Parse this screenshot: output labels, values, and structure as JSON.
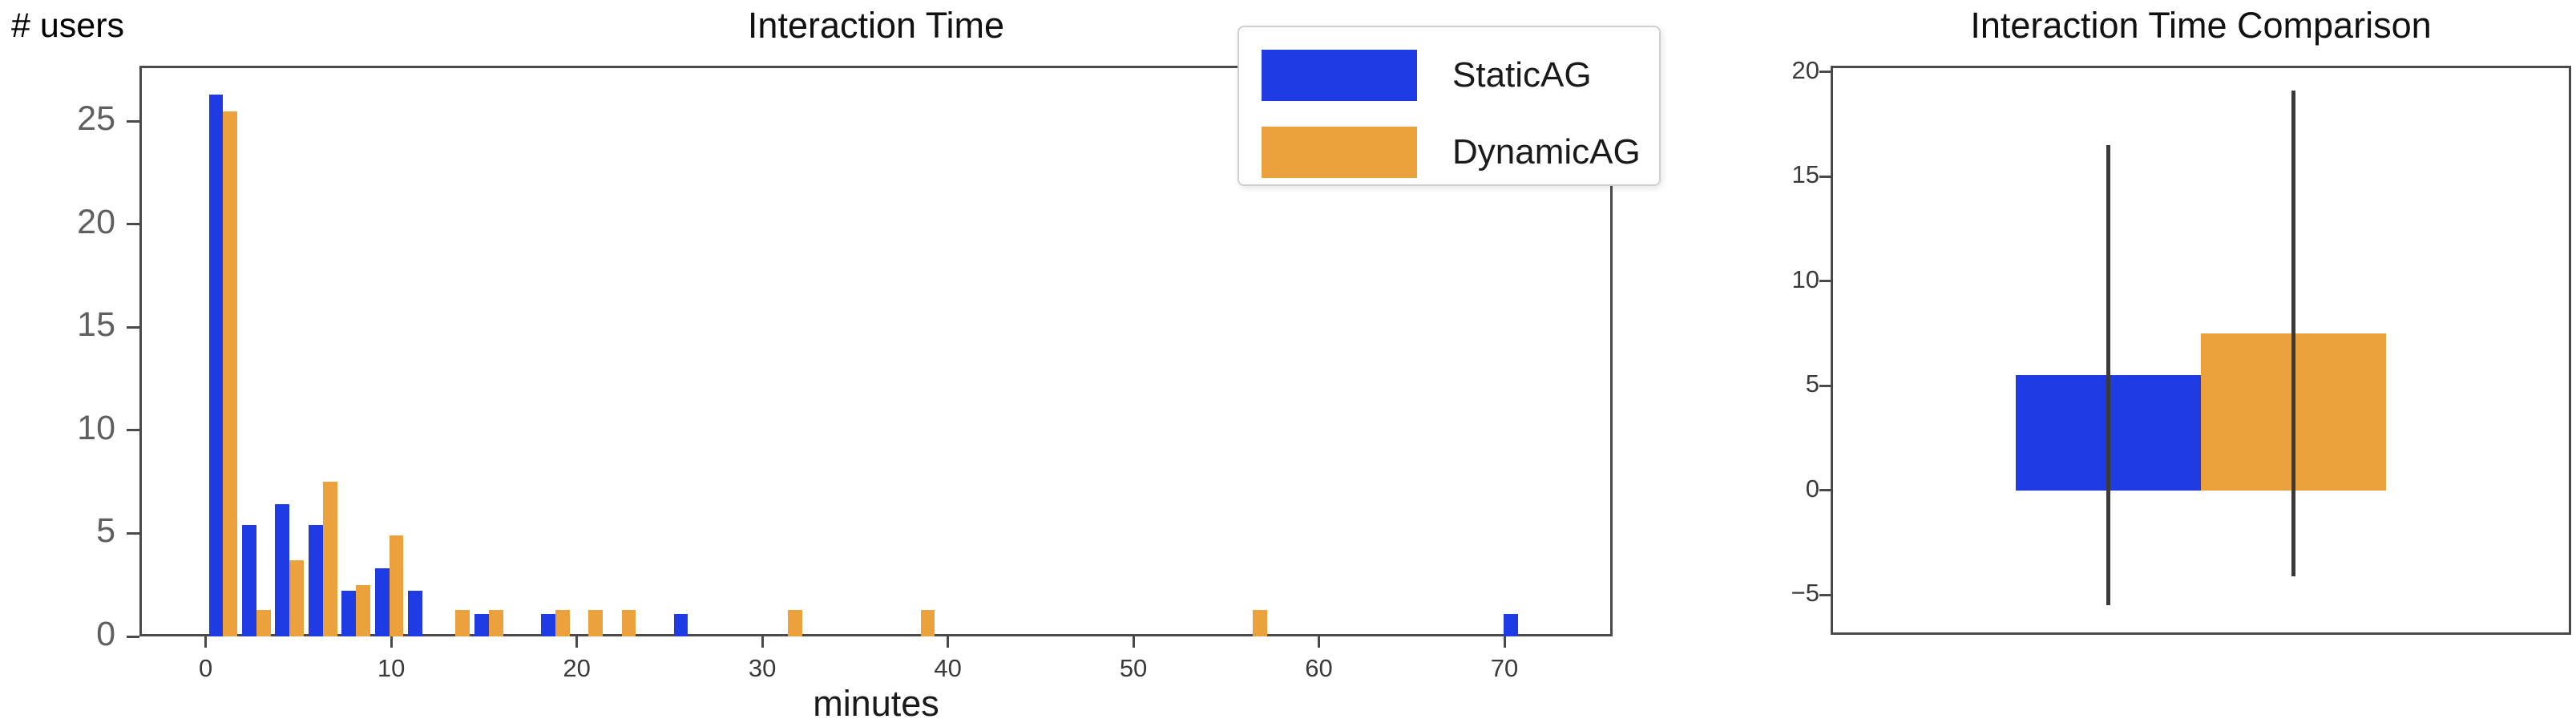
{
  "colors": {
    "staticag": "#1e3be4",
    "dynamicag": "#eba23d",
    "error_bar": "#3a3a3a",
    "spine": "#4a4a4a",
    "background": "#ffffff",
    "title_text": "#111111",
    "x_tick_text": "#3a3a3a",
    "y_tick_text_left": "#5f5f5f",
    "y_tick_text_right": "#3a3a3a"
  },
  "legend": {
    "entries": [
      {
        "label": "StaticAG",
        "series_key": "staticag"
      },
      {
        "label": "DynamicAG",
        "series_key": "dynamicag"
      }
    ]
  },
  "chart_data": [
    {
      "id": "interaction-time-histogram",
      "type": "bar",
      "title": "Interaction Time",
      "xlabel": "minutes",
      "ylabel": "# users",
      "xlim": [
        -3.57,
        75.83
      ],
      "ylim": [
        0,
        27.7
      ],
      "grid": false,
      "legend_position": "upper right",
      "bar_width_minutes": 0.77,
      "bin_width_minutes": 1.79,
      "x_ticks": [
        {
          "value": 0,
          "label": "0"
        },
        {
          "value": 10,
          "label": "10"
        },
        {
          "value": 20,
          "label": "20"
        },
        {
          "value": 30,
          "label": "30"
        },
        {
          "value": 40,
          "label": "40"
        },
        {
          "value": 50,
          "label": "50"
        },
        {
          "value": 60,
          "label": "60"
        },
        {
          "value": 70,
          "label": "70"
        }
      ],
      "y_ticks": [
        {
          "value": 0,
          "label": "0"
        },
        {
          "value": 5,
          "label": "5"
        },
        {
          "value": 10,
          "label": "10"
        },
        {
          "value": 15,
          "label": "15"
        },
        {
          "value": 20,
          "label": "20"
        },
        {
          "value": 25,
          "label": "25"
        }
      ],
      "series": [
        {
          "name": "StaticAG",
          "color_key": "staticag",
          "bars": [
            {
              "x": 0.17,
              "h": 26.3
            },
            {
              "x": 1.96,
              "h": 5.4
            },
            {
              "x": 3.75,
              "h": 6.4
            },
            {
              "x": 5.54,
              "h": 5.4
            },
            {
              "x": 7.33,
              "h": 2.2
            },
            {
              "x": 9.12,
              "h": 3.3
            },
            {
              "x": 10.91,
              "h": 2.2
            },
            {
              "x": 14.49,
              "h": 1.1
            },
            {
              "x": 18.07,
              "h": 1.1
            },
            {
              "x": 25.23,
              "h": 1.1
            },
            {
              "x": 69.97,
              "h": 1.1
            }
          ]
        },
        {
          "name": "DynamicAG",
          "color_key": "dynamicag",
          "bars": [
            {
              "x": 0.94,
              "h": 25.5
            },
            {
              "x": 2.73,
              "h": 1.3
            },
            {
              "x": 4.52,
              "h": 3.7
            },
            {
              "x": 6.31,
              "h": 7.5
            },
            {
              "x": 8.1,
              "h": 2.5
            },
            {
              "x": 9.89,
              "h": 4.9
            },
            {
              "x": 13.47,
              "h": 1.3
            },
            {
              "x": 15.26,
              "h": 1.3
            },
            {
              "x": 18.84,
              "h": 1.3
            },
            {
              "x": 20.63,
              "h": 1.3
            },
            {
              "x": 22.42,
              "h": 1.3
            },
            {
              "x": 31.37,
              "h": 1.3
            },
            {
              "x": 38.53,
              "h": 1.3
            },
            {
              "x": 56.43,
              "h": 1.3
            }
          ]
        }
      ]
    },
    {
      "id": "interaction-time-comparison",
      "type": "bar",
      "title": "Interaction Time Comparison",
      "xlabel": "",
      "ylabel": "",
      "xlim": [
        0,
        4
      ],
      "ylim": [
        -6.9,
        20.3
      ],
      "grid": false,
      "bar_width_x": 1,
      "y_ticks": [
        {
          "value": -5,
          "label": "−5"
        },
        {
          "value": 0,
          "label": "0"
        },
        {
          "value": 5,
          "label": "5"
        },
        {
          "value": 10,
          "label": "10"
        },
        {
          "value": 15,
          "label": "15"
        },
        {
          "value": 20,
          "label": "20"
        }
      ],
      "series": [
        {
          "name": "StaticAG",
          "color_key": "staticag",
          "x": 1.5,
          "mean": 5.5,
          "err_low": -5.5,
          "err_high": 16.5
        },
        {
          "name": "DynamicAG",
          "color_key": "dynamicag",
          "x": 2.5,
          "mean": 7.5,
          "err_low": -4.1,
          "err_high": 19.1
        }
      ]
    }
  ]
}
